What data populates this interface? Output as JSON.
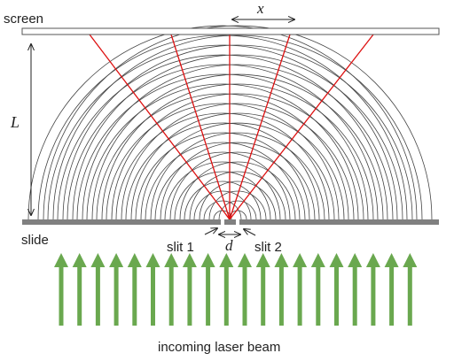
{
  "labels": {
    "screen": "screen",
    "x": "x",
    "L": "L",
    "slide": "slide",
    "d": "d",
    "slit1": "slit 1",
    "slit2": "slit 2",
    "beam": "incoming laser beam"
  },
  "colors": {
    "ray": "#dd1111",
    "wave": "#444444",
    "slide": "#808080",
    "beam": "#6aa84f",
    "text": "#222222"
  },
  "wave_ring_count": 20,
  "arrow_count": 20
}
